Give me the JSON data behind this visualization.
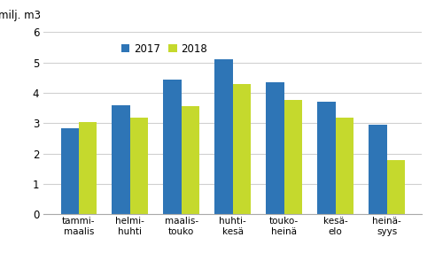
{
  "categories": [
    "tammi-\nmaalis",
    "helmi-\nhuhti",
    "maalis-\ntouko",
    "huhti-\nkesä",
    "touko-\nheinä",
    "kesä-\nelo",
    "heinä-\nsyys"
  ],
  "values_2017": [
    2.85,
    3.6,
    4.45,
    5.1,
    4.35,
    3.72,
    2.95
  ],
  "values_2018": [
    3.03,
    3.2,
    3.56,
    4.28,
    3.76,
    3.18,
    1.8
  ],
  "color_2017": "#2E75B6",
  "color_2018": "#C5D92D",
  "ylabel": "milj. m3",
  "ylim": [
    0,
    6
  ],
  "yticks": [
    0,
    1,
    2,
    3,
    4,
    5,
    6
  ],
  "legend_labels": [
    "2017",
    "2018"
  ],
  "bar_width": 0.35,
  "background_color": "#ffffff",
  "grid_color": "#d0d0d0"
}
